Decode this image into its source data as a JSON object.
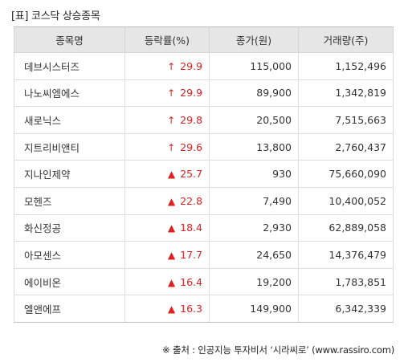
{
  "title": "[표] 코스닥 상승종목",
  "headers": [
    "종목명",
    "등락률(%)",
    "종가(원)",
    "거래량(주)"
  ],
  "arrow_symbols": {
    "limit_up": "↑",
    "up": "▲"
  },
  "rows": [
    {
      "name": "데브시스터즈",
      "arrow": "↑",
      "arrow_type": "limit-up",
      "rate": "29.9",
      "price": "115,000",
      "volume": "1,152,496"
    },
    {
      "name": "나노씨엠에스",
      "arrow": "↑",
      "arrow_type": "limit-up",
      "rate": "29.9",
      "price": "89,900",
      "volume": "1,342,819"
    },
    {
      "name": "새로닉스",
      "arrow": "↑",
      "arrow_type": "limit-up",
      "rate": "29.8",
      "price": "20,500",
      "volume": "7,515,663"
    },
    {
      "name": "지트리비앤티",
      "arrow": "↑",
      "arrow_type": "limit-up",
      "rate": "29.6",
      "price": "13,800",
      "volume": "2,760,437"
    },
    {
      "name": "지나인제약",
      "arrow": "▲",
      "arrow_type": "up",
      "rate": "25.7",
      "price": "930",
      "volume": "75,660,090"
    },
    {
      "name": "모헨즈",
      "arrow": "▲",
      "arrow_type": "up",
      "rate": "22.8",
      "price": "7,490",
      "volume": "10,400,052"
    },
    {
      "name": "화신정공",
      "arrow": "▲",
      "arrow_type": "up",
      "rate": "18.4",
      "price": "2,930",
      "volume": "62,889,058"
    },
    {
      "name": "아모센스",
      "arrow": "▲",
      "arrow_type": "up",
      "rate": "17.7",
      "price": "24,650",
      "volume": "14,376,479"
    },
    {
      "name": "에이비온",
      "arrow": "▲",
      "arrow_type": "up",
      "rate": "16.4",
      "price": "19,200",
      "volume": "1,783,851"
    },
    {
      "name": "엘앤에프",
      "arrow": "▲",
      "arrow_type": "up",
      "rate": "16.3",
      "price": "149,900",
      "volume": "6,342,339"
    }
  ],
  "source": "※ 출처 : 인공지능 투자비서 ‘시라씨로’ (www.rassiro.com)",
  "colors": {
    "up": "#e02020",
    "header_bg": "#e6e6e6",
    "border": "#dcdcdc"
  }
}
